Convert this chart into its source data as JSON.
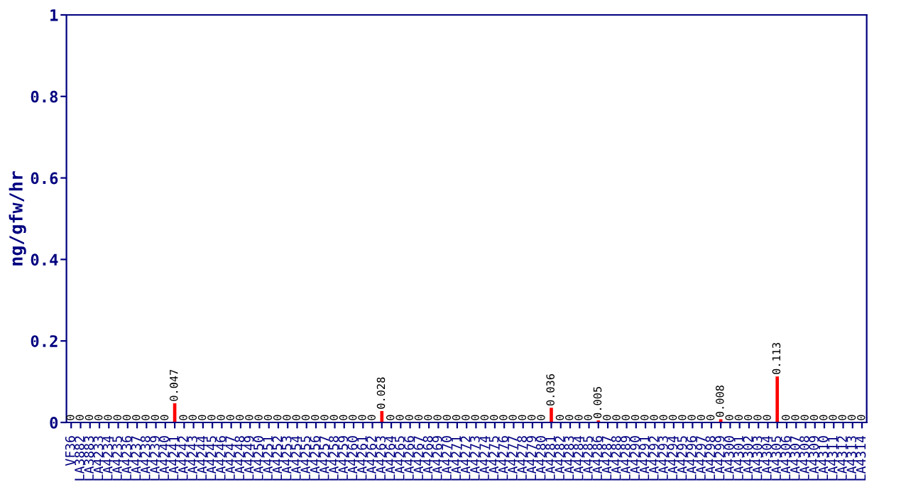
{
  "chart_data": {
    "type": "bar",
    "ylabel": "ng/gfw/hr",
    "categories": [
      "VF36",
      "LA3882",
      "LA3883",
      "LA4233",
      "LA4234",
      "LA4235",
      "LA4236",
      "LA4237",
      "LA4238",
      "LA4239",
      "LA4240",
      "LA4241",
      "LA4242",
      "LA4243",
      "LA4244",
      "LA4245",
      "LA4246",
      "LA4247",
      "LA4248",
      "LA4249",
      "LA4250",
      "LA4251",
      "LA4252",
      "LA4253",
      "LA4254",
      "LA4255",
      "LA4256",
      "LA4257",
      "LA4258",
      "LA4259",
      "LA4260",
      "LA4261",
      "LA4262",
      "LA4263",
      "LA4264",
      "LA4265",
      "LA4266",
      "LA4267",
      "LA4268",
      "LA4269",
      "LA4270",
      "LA4271",
      "LA4272",
      "LA4273",
      "LA4274",
      "LA4275",
      "LA4276",
      "LA4277",
      "LA4278",
      "LA4279",
      "LA4280",
      "LA4281",
      "LA4282",
      "LA4283",
      "LA4284",
      "LA4285",
      "LA4286",
      "LA4287",
      "LA4288",
      "LA4289",
      "LA4290",
      "LA4291",
      "LA4292",
      "LA4293",
      "LA4294",
      "LA4295",
      "LA4296",
      "LA4297",
      "LA4298",
      "LA4299",
      "LA4300",
      "LA4301",
      "LA4302",
      "LA4303",
      "LA4304",
      "LA4305",
      "LA4306",
      "LA4307",
      "LA4308",
      "LA4309",
      "LA4310",
      "LA4311",
      "LA4312",
      "LA4313",
      "LA4314"
    ],
    "values": [
      0,
      0,
      0,
      0,
      0,
      0,
      0,
      0,
      0,
      0,
      0,
      0.047,
      0,
      0,
      0,
      0,
      0,
      0,
      0,
      0,
      0,
      0,
      0,
      0,
      0,
      0,
      0,
      0,
      0,
      0,
      0,
      0,
      0,
      0.028,
      0,
      0,
      0,
      0,
      0,
      0,
      0,
      0,
      0,
      0,
      0,
      0,
      0,
      0,
      0,
      0,
      0,
      0.036,
      0,
      0,
      0,
      0,
      0.005,
      0,
      0,
      0,
      0,
      0,
      0,
      0,
      0,
      0,
      0,
      0,
      0,
      0.008,
      0,
      0,
      0,
      0,
      0,
      0.113,
      0,
      0,
      0,
      0,
      0,
      0,
      0,
      0,
      0
    ],
    "value_labels": [
      "0",
      "0",
      "0",
      "0",
      "0",
      "0",
      "0",
      "0",
      "0",
      "0",
      "0",
      "0.047",
      "0",
      "0",
      "0",
      "0",
      "0",
      "0",
      "0",
      "0",
      "0",
      "0",
      "0",
      "0",
      "0",
      "0",
      "0",
      "0",
      "0",
      "0",
      "0",
      "0",
      "0",
      "0.028",
      "0",
      "0",
      "0",
      "0",
      "0",
      "0",
      "0",
      "0",
      "0",
      "0",
      "0",
      "0",
      "0",
      "0",
      "0",
      "0",
      "0",
      "0.036",
      "0",
      "0",
      "0",
      "0",
      "0.005",
      "0",
      "0",
      "0",
      "0",
      "0",
      "0",
      "0",
      "0",
      "0",
      "0",
      "0",
      "0",
      "0.008",
      "0",
      "0",
      "0",
      "0",
      "0",
      "0.113",
      "0",
      "0",
      "0",
      "0",
      "0",
      "0",
      "0",
      "0",
      "0"
    ],
    "color": "#ff0000",
    "ylim": [
      0,
      1
    ],
    "yticks": [
      0,
      0.2,
      0.4,
      0.6,
      0.8,
      1
    ],
    "grid": false
  }
}
